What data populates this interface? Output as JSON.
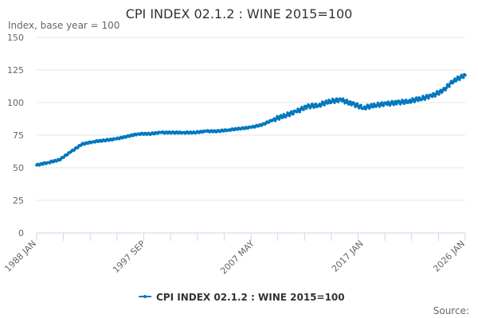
{
  "chart_data": {
    "type": "line",
    "title": "CPI INDEX 02.1.2 : WINE 2015=100",
    "ylabel": "Index, base year = 100",
    "xlabel": "",
    "ylim": [
      0,
      150
    ],
    "yticks": [
      0,
      25,
      50,
      75,
      100,
      125,
      150
    ],
    "xlim": [
      1988,
      2026
    ],
    "xtick_labels": [
      {
        "label": "1988 JAN",
        "x": 1988
      },
      {
        "label": "1997 SEP",
        "x": 1997.67
      },
      {
        "label": "2007 MAY",
        "x": 2007.33
      },
      {
        "label": "2017 JAN",
        "x": 2017
      },
      {
        "label": "2026 JAN",
        "x": 2026
      }
    ],
    "grid": "horizontal",
    "legend_position": "bottom",
    "series": [
      {
        "name": "CPI INDEX 02.1.2 : WINE 2015=100",
        "color": "#0077be",
        "x": [
          1988,
          1989,
          1990,
          1991,
          1992,
          1993,
          1994,
          1995,
          1996,
          1997,
          1998,
          1999,
          2000,
          2001,
          2002,
          2003,
          2004,
          2005,
          2006,
          2007,
          2008,
          2009,
          2010,
          2011,
          2012,
          2013,
          2014,
          2015,
          2016,
          2017,
          2018,
          2019,
          2020,
          2021,
          2022,
          2023,
          2024,
          2025,
          2026
        ],
        "values": [
          52,
          54,
          56,
          62,
          68,
          70,
          71,
          72,
          74,
          76,
          76,
          77,
          77,
          77,
          77,
          78,
          78,
          79,
          80,
          81,
          83,
          87,
          90,
          93,
          97,
          98,
          101,
          102,
          99,
          96,
          98,
          99,
          100,
          101,
          103,
          105,
          109,
          117,
          121
        ]
      }
    ]
  },
  "footer": {
    "source": "Source:"
  }
}
